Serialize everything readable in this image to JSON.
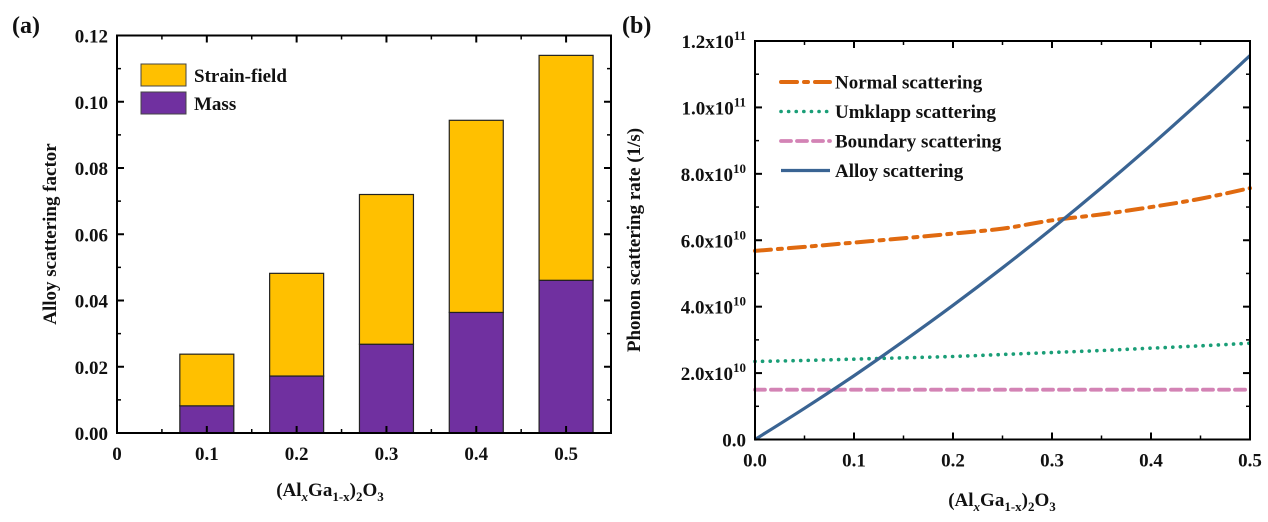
{
  "chart_data": [
    {
      "panel": "(a)",
      "type": "bar",
      "stacked": true,
      "categories": [
        "0.1",
        "0.2",
        "0.3",
        "0.4",
        "0.5"
      ],
      "x": [
        0.1,
        0.2,
        0.3,
        0.4,
        0.5
      ],
      "series": [
        {
          "name": "Mass",
          "color": "#7030A0",
          "values": [
            0.0082,
            0.0172,
            0.0268,
            0.0364,
            0.0461
          ]
        },
        {
          "name": "Strain-field",
          "color": "#FFC000",
          "values": [
            0.0156,
            0.031,
            0.0452,
            0.058,
            0.0679
          ]
        }
      ],
      "totals": [
        0.0238,
        0.0482,
        0.072,
        0.0944,
        0.114
      ],
      "legend_order": [
        "Strain-field",
        "Mass"
      ],
      "legend_position": "top-left",
      "title": "",
      "xlabel": "(AlxGa1-x)2O3",
      "xlabel_parts": {
        "base1": "(Al",
        "sub1": "x",
        "base2": "Ga",
        "sub2": "1-x",
        "base3": ")",
        "sub3": "2",
        "base4": "O",
        "sub4": "3"
      },
      "ylabel": "Alloy scattering factor",
      "xlim": [
        0,
        0.55
      ],
      "ylim": [
        0,
        0.12
      ],
      "xticks": [
        0,
        0.1,
        0.2,
        0.3,
        0.4,
        0.5
      ],
      "xtick_labels": [
        "0",
        "0.1",
        "0.2",
        "0.3",
        "0.4",
        "0.5"
      ],
      "yticks": [
        0,
        0.02,
        0.04,
        0.06,
        0.08,
        0.1,
        0.12
      ],
      "ytick_labels": [
        "0.00",
        "0.02",
        "0.04",
        "0.06",
        "0.08",
        "0.10",
        "0.12"
      ],
      "grid": false
    },
    {
      "panel": "(b)",
      "type": "line",
      "x": [
        0,
        0.05,
        0.1,
        0.15,
        0.2,
        0.25,
        0.3,
        0.35,
        0.4,
        0.45,
        0.5
      ],
      "series": [
        {
          "name": "Normal scattering",
          "color": "#E06A10",
          "style": "dash-dot",
          "values": [
            56800000000.0,
            58000000000.0,
            59300000000.0,
            60600000000.0,
            62000000000.0,
            63500000000.0,
            66000000000.0,
            67800000000.0,
            70000000000.0,
            72500000000.0,
            75700000000.0
          ]
        },
        {
          "name": "Umklapp scattering",
          "color": "#1A9E77",
          "style": "dotted",
          "values": [
            23500000000.0,
            23800000000.0,
            24200000000.0,
            24600000000.0,
            25000000000.0,
            25600000000.0,
            26200000000.0,
            26800000000.0,
            27500000000.0,
            28200000000.0,
            29000000000.0
          ]
        },
        {
          "name": "Boundary scattering",
          "color": "#D383B5",
          "style": "dashed",
          "values": [
            15000000000.0,
            15000000000.0,
            15000000000.0,
            15000000000.0,
            15000000000.0,
            15000000000.0,
            15000000000.0,
            15000000000.0,
            15000000000.0,
            15000000000.0,
            15000000000.0
          ]
        },
        {
          "name": "Alloy scattering",
          "color": "#3A6493",
          "style": "solid",
          "values": [
            0.0,
            9400000000.0,
            19200000000.0,
            29600000000.0,
            40400000000.0,
            51700000000.0,
            63500000000.0,
            75800000000.0,
            88600000000.0,
            101900000000.0,
            115600000000.0
          ]
        }
      ],
      "legend_position": "top-left",
      "title": "",
      "xlabel": "(AlxGa1-x)2O3",
      "xlabel_parts": {
        "base1": "(Al",
        "sub1": "x",
        "base2": "Ga",
        "sub2": "1-x",
        "base3": ")",
        "sub3": "2",
        "base4": "O",
        "sub4": "3"
      },
      "ylabel": "Phonon scattering rate (1/s)",
      "xlim": [
        0,
        0.5
      ],
      "ylim": [
        0,
        120000000000.0
      ],
      "xticks": [
        0,
        0.1,
        0.2,
        0.3,
        0.4,
        0.5
      ],
      "xtick_labels": [
        "0.0",
        "0.1",
        "0.2",
        "0.3",
        "0.4",
        "0.5"
      ],
      "yticks": [
        0,
        20000000000.0,
        40000000000.0,
        60000000000.0,
        80000000000.0,
        100000000000.0,
        120000000000.0
      ],
      "ytick_labels": [
        {
          "mant": "0.0",
          "exp": ""
        },
        {
          "mant": "2.0x10",
          "exp": "10"
        },
        {
          "mant": "4.0x10",
          "exp": "10"
        },
        {
          "mant": "6.0x10",
          "exp": "10"
        },
        {
          "mant": "8.0x10",
          "exp": "10"
        },
        {
          "mant": "1.0x10",
          "exp": "11"
        },
        {
          "mant": "1.2x10",
          "exp": "11"
        }
      ],
      "grid": false
    }
  ]
}
